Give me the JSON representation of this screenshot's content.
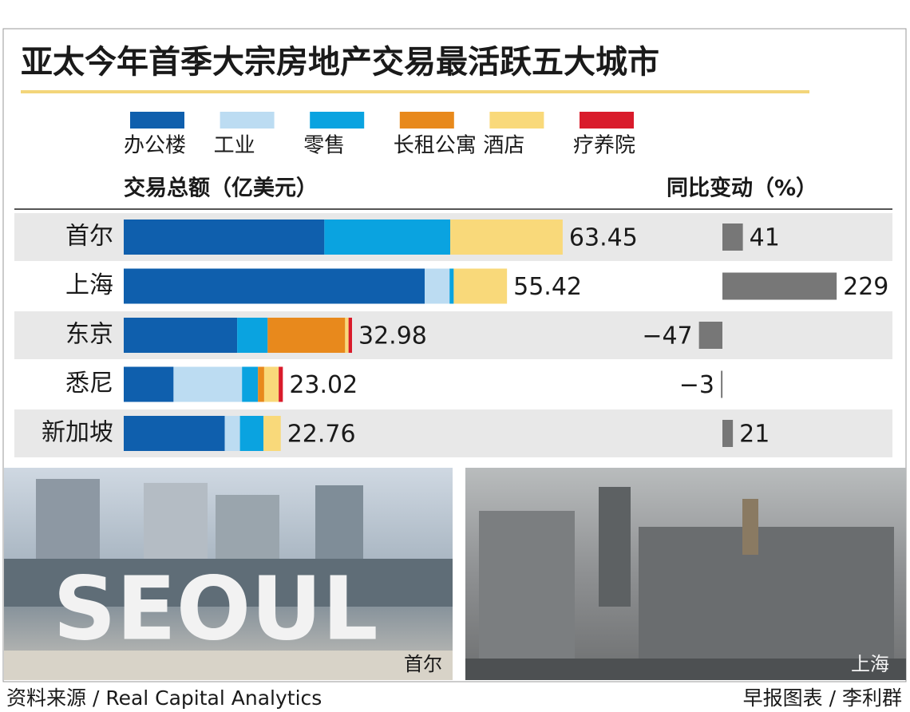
{
  "chart_data": [
    {
      "type": "stacked-bar",
      "title": "亚太今年首季大宗房地产交易最活跃五大城市",
      "x_label": "交易总额（亿美元）",
      "categories": [
        "首尔",
        "上海",
        "东京",
        "悉尼",
        "新加坡"
      ],
      "series": [
        {
          "name": "办公楼",
          "color": "#0f5fad",
          "values": [
            29.0,
            43.5,
            16.4,
            7.2,
            14.6
          ]
        },
        {
          "name": "工业",
          "color": "#bcdcf2",
          "values": [
            0,
            3.6,
            0,
            9.9,
            2.2
          ]
        },
        {
          "name": "零售",
          "color": "#0aa3e0",
          "values": [
            18.2,
            0.6,
            4.4,
            2.3,
            3.4
          ]
        },
        {
          "name": "长租公寓",
          "color": "#e8891c",
          "values": [
            0,
            0,
            11.2,
            0.9,
            0
          ]
        },
        {
          "name": "酒店",
          "color": "#f9d97a",
          "values": [
            16.25,
            7.7,
            0.5,
            2.1,
            2.5
          ]
        },
        {
          "name": "疗养院",
          "color": "#d91b2b",
          "values": [
            0,
            0,
            0.5,
            0.6,
            0
          ]
        }
      ],
      "totals": [
        63.45,
        55.42,
        32.98,
        23.02,
        22.76
      ],
      "xlim": [
        0,
        66
      ]
    },
    {
      "type": "diverging-bar",
      "x_label": "同比变动（%）",
      "values": [
        41,
        229,
        -47,
        -3,
        21
      ],
      "value_labels": [
        "41",
        "229",
        "−47",
        "−3",
        "21"
      ],
      "color": "#777777",
      "xlim": [
        -80,
        240
      ]
    }
  ],
  "photos": [
    {
      "caption": "首尔"
    },
    {
      "caption": "上海"
    }
  ],
  "source": "资料来源 / Real Capital Analytics",
  "credit": "早报图表 / 李利群"
}
